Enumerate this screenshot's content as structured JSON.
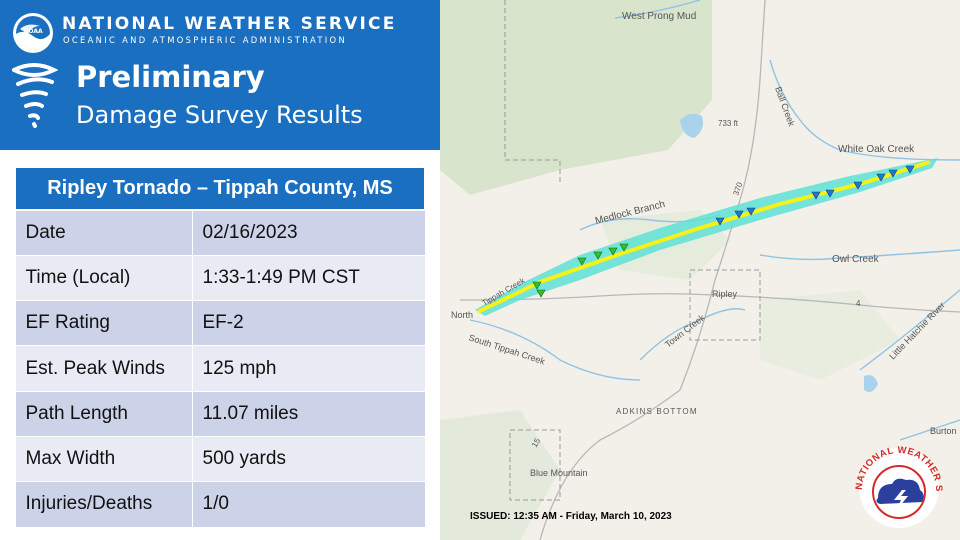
{
  "header": {
    "agency": "NATIONAL WEATHER SERVICE",
    "agency_sub": "OCEANIC AND ATMOSPHERIC ADMINISTRATION",
    "noaa_logo_text": "NOAA",
    "headline": "Preliminary",
    "subheadline": "Damage Survey Results"
  },
  "table": {
    "title": "Ripley Tornado – Tippah County, MS",
    "rows": [
      {
        "label": "Date",
        "value": "02/16/2023"
      },
      {
        "label": "Time (Local)",
        "value": "1:33-1:49 PM CST"
      },
      {
        "label": "EF Rating",
        "value": "EF-2"
      },
      {
        "label": "Est. Peak Winds",
        "value": "125 mph"
      },
      {
        "label": "Path Length",
        "value": "11.07 miles"
      },
      {
        "label": "Max Width",
        "value": "500 yards"
      },
      {
        "label": "Injuries/Deaths",
        "value": "1/0"
      }
    ]
  },
  "map": {
    "labels": {
      "west_prong": "West Prong Mud",
      "ball_creek": "Ball Creek",
      "elevation": "733 ft",
      "white_oak_creek": "White Oak Creek",
      "medlock_branch": "Medlock Branch",
      "route_370": "370",
      "owl_creek": "Owl Creek",
      "ripley": "Ripley",
      "tippah_creek": "Tippah Creek",
      "north": "North",
      "town_creek": "Town Creek",
      "south_tippah": "South Tippah Creek",
      "little_hatchie": "Little Hatchie River",
      "adkins_bottom": "ADKINS BOTTOM",
      "route_15": "15",
      "route_4": "4",
      "blue_mountain": "Blue Mountain",
      "burton": "Burton"
    },
    "colors": {
      "damage_swath": "#5ee0d6",
      "track_line": "#f5f216",
      "ef1_marker": "#1f78d1",
      "ef0_marker": "#2fc22f"
    },
    "issued": "ISSUED: 12:35 AM - Friday, March 10, 2023",
    "nws_logo_text": "NATIONAL WEATHER SERVICE"
  }
}
